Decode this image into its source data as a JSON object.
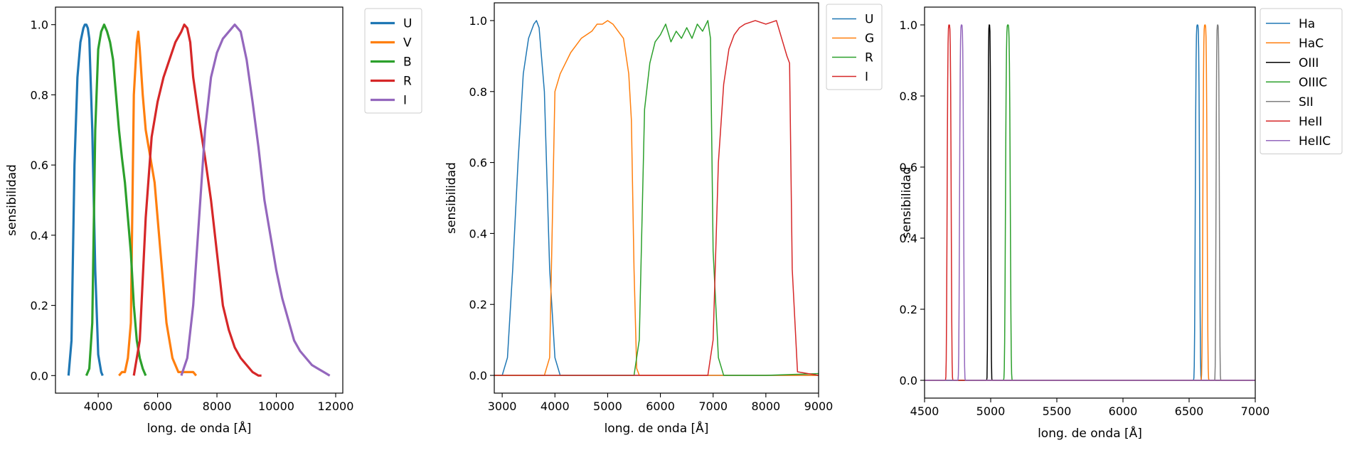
{
  "chart_data": [
    {
      "type": "line",
      "xlabel": "long. de onda [Å]",
      "ylabel": "sensibilidad",
      "xlim": [
        2560,
        12240
      ],
      "ylim": [
        -0.05,
        1.05
      ],
      "xticks": [
        4000,
        6000,
        8000,
        10000,
        12000
      ],
      "yticks": [
        0.0,
        0.2,
        0.4,
        0.6,
        0.8,
        1.0
      ],
      "legend": "upper-right-outside",
      "series": [
        {
          "name": "U",
          "color": "#1f77b4",
          "x": [
            3000,
            3100,
            3200,
            3300,
            3400,
            3500,
            3550,
            3600,
            3650,
            3700,
            3800,
            3900,
            4000,
            4100,
            4150
          ],
          "y": [
            0.0,
            0.1,
            0.6,
            0.85,
            0.95,
            0.99,
            1.0,
            1.0,
            0.99,
            0.96,
            0.7,
            0.3,
            0.06,
            0.01,
            0.0
          ]
        },
        {
          "name": "V",
          "color": "#ff7f0e",
          "x": [
            4700,
            4800,
            4900,
            5000,
            5100,
            5200,
            5300,
            5350,
            5400,
            5500,
            5600,
            5700,
            5800,
            5900,
            6000,
            6100,
            6200,
            6300,
            6400,
            6500,
            6600,
            6700,
            6800,
            6900,
            7000,
            7100,
            7200,
            7300
          ],
          "y": [
            0.0,
            0.01,
            0.01,
            0.05,
            0.15,
            0.8,
            0.95,
            0.98,
            0.93,
            0.8,
            0.7,
            0.65,
            0.6,
            0.55,
            0.45,
            0.35,
            0.25,
            0.15,
            0.1,
            0.05,
            0.03,
            0.01,
            0.01,
            0.01,
            0.01,
            0.01,
            0.01,
            0.0
          ]
        },
        {
          "name": "B",
          "color": "#2ca02c",
          "x": [
            3600,
            3700,
            3800,
            3900,
            4000,
            4100,
            4200,
            4300,
            4400,
            4500,
            4600,
            4700,
            4800,
            4900,
            5000,
            5100,
            5200,
            5300,
            5400,
            5500,
            5600
          ],
          "y": [
            0.0,
            0.02,
            0.15,
            0.7,
            0.93,
            0.98,
            1.0,
            0.98,
            0.95,
            0.9,
            0.8,
            0.7,
            0.62,
            0.55,
            0.45,
            0.35,
            0.2,
            0.1,
            0.05,
            0.02,
            0.0
          ]
        },
        {
          "name": "R",
          "color": "#d62728",
          "x": [
            5200,
            5400,
            5600,
            5800,
            6000,
            6200,
            6400,
            6600,
            6800,
            6900,
            7000,
            7100,
            7200,
            7400,
            7600,
            7800,
            8000,
            8200,
            8400,
            8600,
            8800,
            9000,
            9200,
            9400,
            9500
          ],
          "y": [
            0.0,
            0.1,
            0.45,
            0.68,
            0.78,
            0.85,
            0.9,
            0.95,
            0.98,
            1.0,
            0.99,
            0.95,
            0.85,
            0.73,
            0.62,
            0.5,
            0.35,
            0.2,
            0.13,
            0.08,
            0.05,
            0.03,
            0.01,
            0.0,
            0.0
          ]
        },
        {
          "name": "I",
          "color": "#9467bd",
          "x": [
            6800,
            7000,
            7200,
            7400,
            7600,
            7800,
            8000,
            8200,
            8400,
            8600,
            8800,
            9000,
            9200,
            9400,
            9600,
            9800,
            10000,
            10200,
            10400,
            10600,
            10800,
            11000,
            11200,
            11400,
            11600,
            11800
          ],
          "y": [
            0.0,
            0.05,
            0.2,
            0.45,
            0.7,
            0.85,
            0.92,
            0.96,
            0.98,
            1.0,
            0.98,
            0.9,
            0.78,
            0.65,
            0.5,
            0.4,
            0.3,
            0.22,
            0.16,
            0.1,
            0.07,
            0.05,
            0.03,
            0.02,
            0.01,
            0.0
          ]
        }
      ]
    },
    {
      "type": "line",
      "xlabel": "long. de onda [Å]",
      "ylabel": "sensibilidad",
      "xlim": [
        2850,
        9000
      ],
      "ylim": [
        -0.05,
        1.05
      ],
      "xticks": [
        3000,
        4000,
        5000,
        6000,
        7000,
        8000,
        9000
      ],
      "yticks": [
        0.0,
        0.2,
        0.4,
        0.6,
        0.8,
        1.0
      ],
      "legend": "upper-right-outside",
      "series": [
        {
          "name": "U",
          "color": "#1f77b4",
          "x": [
            2850,
            3000,
            3100,
            3200,
            3300,
            3400,
            3500,
            3600,
            3650,
            3700,
            3800,
            3900,
            4000,
            4100,
            9000
          ],
          "y": [
            0.0,
            0.0,
            0.05,
            0.3,
            0.6,
            0.85,
            0.95,
            0.99,
            1.0,
            0.98,
            0.8,
            0.3,
            0.05,
            0.0,
            0.0
          ]
        },
        {
          "name": "G",
          "color": "#ff7f0e",
          "x": [
            2850,
            3800,
            3900,
            4000,
            4100,
            4200,
            4300,
            4400,
            4500,
            4600,
            4700,
            4800,
            4900,
            5000,
            5100,
            5200,
            5300,
            5400,
            5450,
            5500,
            5550,
            5600,
            9000
          ],
          "y": [
            0.0,
            0.0,
            0.05,
            0.8,
            0.85,
            0.88,
            0.91,
            0.93,
            0.95,
            0.96,
            0.97,
            0.99,
            0.99,
            1.0,
            0.99,
            0.97,
            0.95,
            0.85,
            0.72,
            0.3,
            0.02,
            0.0,
            0.0
          ]
        },
        {
          "name": "R",
          "color": "#2ca02c",
          "x": [
            2850,
            5500,
            5600,
            5700,
            5800,
            5900,
            6000,
            6100,
            6200,
            6300,
            6400,
            6500,
            6600,
            6700,
            6800,
            6900,
            6950,
            7000,
            7100,
            7200,
            8000,
            9000
          ],
          "y": [
            0.0,
            0.0,
            0.1,
            0.75,
            0.88,
            0.94,
            0.96,
            0.99,
            0.94,
            0.97,
            0.95,
            0.98,
            0.95,
            0.99,
            0.97,
            1.0,
            0.95,
            0.35,
            0.05,
            0.0,
            0.0,
            0.005
          ]
        },
        {
          "name": "I",
          "color": "#d62728",
          "x": [
            2850,
            6900,
            7000,
            7100,
            7200,
            7300,
            7400,
            7500,
            7600,
            7800,
            8000,
            8200,
            8300,
            8400,
            8450,
            8500,
            8600,
            9000
          ],
          "y": [
            0.0,
            0.0,
            0.1,
            0.6,
            0.82,
            0.92,
            0.96,
            0.98,
            0.99,
            1.0,
            0.99,
            1.0,
            0.95,
            0.9,
            0.88,
            0.3,
            0.01,
            0.0
          ]
        }
      ]
    },
    {
      "type": "line",
      "xlabel": "long. de onda [Å]",
      "ylabel": "sensibilidad",
      "xlim": [
        4500,
        7000
      ],
      "ylim": [
        -0.05,
        1.05
      ],
      "xticks": [
        4500,
        5000,
        5500,
        6000,
        6500,
        7000
      ],
      "yticks": [
        0.0,
        0.2,
        0.4,
        0.6,
        0.8,
        1.0
      ],
      "legend": "upper-right-outside",
      "series": [
        {
          "name": "Ha",
          "color": "#1f77b4",
          "center": 6563,
          "width": 18
        },
        {
          "name": "HaC",
          "color": "#ff7f0e",
          "center": 6620,
          "width": 18
        },
        {
          "name": "OIII",
          "color": "#000000",
          "center": 4990,
          "width": 12
        },
        {
          "name": "OIIIC",
          "color": "#2ca02c",
          "center": 5130,
          "width": 20
        },
        {
          "name": "SII",
          "color": "#7f7f7f",
          "center": 6716,
          "width": 14
        },
        {
          "name": "HeII",
          "color": "#d62728",
          "center": 4686,
          "width": 17
        },
        {
          "name": "HeIIC",
          "color": "#9467bd",
          "center": 4780,
          "width": 17
        }
      ]
    }
  ]
}
